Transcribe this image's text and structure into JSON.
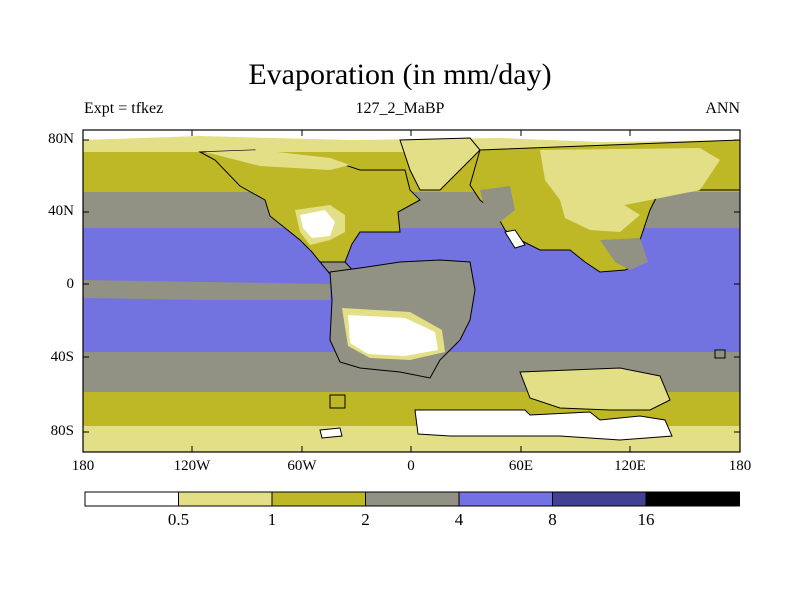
{
  "title": "Evaporation (in mm/day)",
  "left_label": "Expt = tfkez",
  "center_label": "127_2_MaBP",
  "right_label": "ANN",
  "axes": {
    "lat_ticks": [
      "80N",
      "40N",
      "0",
      "40S",
      "80S"
    ],
    "lon_ticks": [
      "180",
      "120W",
      "60W",
      "0",
      "60E",
      "120E",
      "180"
    ]
  },
  "colorbar": {
    "levels": [
      "0.5",
      "1",
      "2",
      "4",
      "8",
      "16"
    ],
    "colors": [
      "#ffffff",
      "#e3df86",
      "#bfb826",
      "#929284",
      "#7272e0",
      "#414092",
      "#000000"
    ]
  },
  "colors": {
    "lt05": "#ffffff",
    "c0510": "#e3df86",
    "c1020": "#bfb826",
    "c2040": "#929284",
    "c4080": "#7272e0",
    "c8016": "#414092",
    "gt16": "#000000"
  }
}
